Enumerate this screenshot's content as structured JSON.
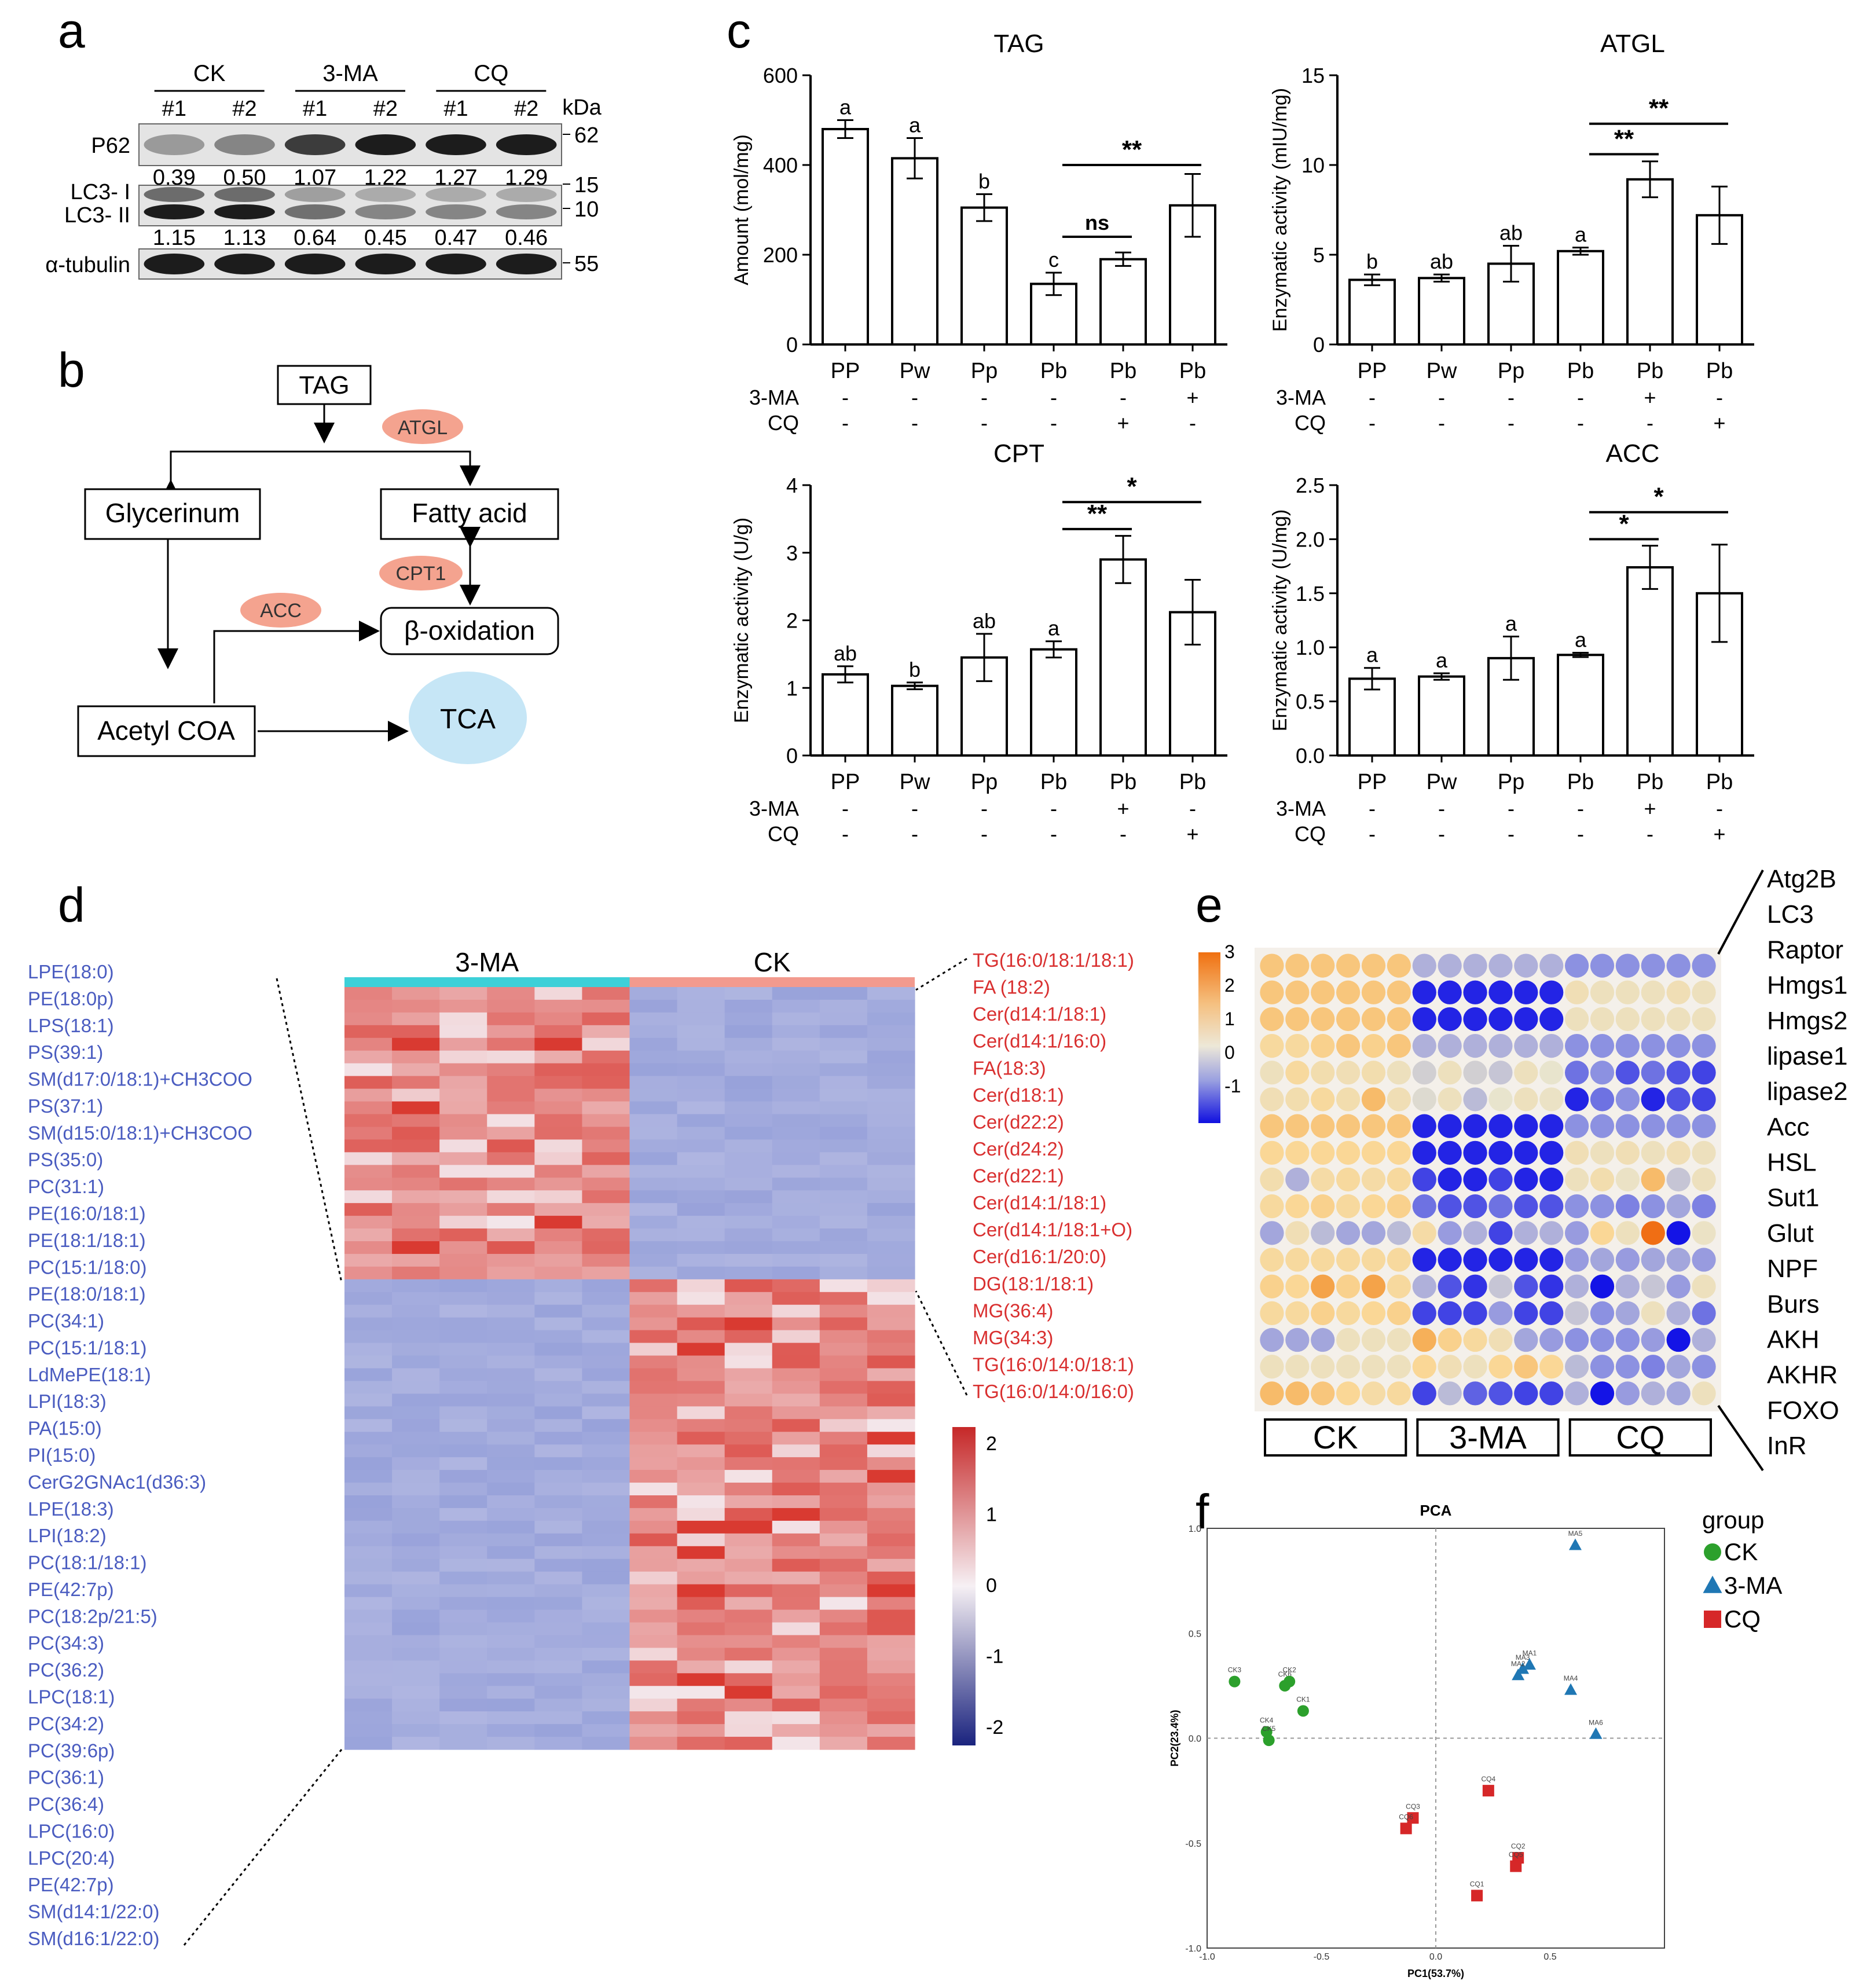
{
  "panel_labels": {
    "a": "a",
    "b": "b",
    "c": "c",
    "d": "d",
    "e": "e",
    "f": "f"
  },
  "blot": {
    "groups": [
      "CK",
      "3-MA",
      "CQ"
    ],
    "lanes": [
      "#1",
      "#2",
      "#1",
      "#2",
      "#1",
      "#2"
    ],
    "unit": "kDa",
    "rows": [
      {
        "label": "P62",
        "markers": [
          "62"
        ],
        "values": [
          "0.39",
          "0.50",
          "1.07",
          "1.22",
          "1.27",
          "1.29"
        ]
      },
      {
        "label": "LC3- I",
        "label2": "LC3- II",
        "markers": [
          "15",
          "10"
        ],
        "values": [
          "1.15",
          "1.13",
          "0.64",
          "0.45",
          "0.47",
          "0.46"
        ]
      },
      {
        "label": "α-tubulin",
        "markers": [
          "55"
        ],
        "values": []
      }
    ],
    "intensity_p62": [
      0.35,
      0.45,
      0.8,
      0.95,
      0.95,
      0.95
    ],
    "intensity_lc3": [
      0.95,
      0.95,
      0.55,
      0.45,
      0.45,
      0.45
    ]
  },
  "pathway": {
    "nodes": {
      "tag": "TAG",
      "glycerinum": "Glycerinum",
      "fatty_acid": "Fatty acid",
      "beta_ox": "β-oxidation",
      "acetyl": "Acetyl COA",
      "tca": "TCA"
    },
    "enzymes": {
      "atgl": "ATGL",
      "cpt1": "CPT1",
      "acc": "ACC"
    },
    "colors": {
      "enzyme": "#f4a38f",
      "tca": "#c6e6f6"
    }
  },
  "chart_data": [
    {
      "type": "bar",
      "title": "TAG",
      "ylabel": "Amount (mol/mg)",
      "ylim": [
        0,
        600
      ],
      "yticks": [
        0,
        200,
        400,
        600
      ],
      "categories": [
        "PP",
        "Pw",
        "Pp",
        "Pb",
        "Pb",
        "Pb"
      ],
      "values": [
        480,
        415,
        305,
        135,
        190,
        310
      ],
      "errors": [
        20,
        45,
        30,
        25,
        15,
        70
      ],
      "letters": [
        "a",
        "a",
        "b",
        "c",
        "",
        ""
      ],
      "treat_rows": [
        {
          "label": "3-MA",
          "signs": [
            "-",
            "-",
            "-",
            "-",
            "-",
            "+"
          ]
        },
        {
          "label": "CQ",
          "signs": [
            "-",
            "-",
            "-",
            "-",
            "+",
            "-"
          ]
        }
      ],
      "sig": [
        {
          "from": 3,
          "to": 4,
          "label": "ns",
          "y": 240
        },
        {
          "from": 3,
          "to": 5,
          "label": "**",
          "y": 400
        }
      ]
    },
    {
      "type": "bar",
      "title": "ATGL",
      "ylabel": "Enzymatic activity (mIU/mg)",
      "ylim": [
        0,
        15
      ],
      "yticks": [
        0,
        5,
        10,
        15
      ],
      "categories": [
        "PP",
        "Pw",
        "Pp",
        "Pb",
        "Pb",
        "Pb"
      ],
      "values": [
        3.6,
        3.7,
        4.5,
        5.2,
        9.2,
        7.2
      ],
      "errors": [
        0.3,
        0.2,
        1.0,
        0.2,
        1.0,
        1.6
      ],
      "letters": [
        "b",
        "ab",
        "ab",
        "a",
        "",
        ""
      ],
      "treat_rows": [
        {
          "label": "3-MA",
          "signs": [
            "-",
            "-",
            "-",
            "-",
            "+",
            "-"
          ]
        },
        {
          "label": "CQ",
          "signs": [
            "-",
            "-",
            "-",
            "-",
            "-",
            "+"
          ]
        }
      ],
      "sig": [
        {
          "from": 3,
          "to": 4,
          "label": "**",
          "y": 10.6
        },
        {
          "from": 3,
          "to": 5,
          "label": "**",
          "y": 12.3
        }
      ]
    },
    {
      "type": "bar",
      "title": "CPT",
      "ylabel": "Enzymatic activity (U/g)",
      "ylim": [
        0,
        4
      ],
      "yticks": [
        0,
        1,
        2,
        3,
        4
      ],
      "categories": [
        "PP",
        "Pw",
        "Pp",
        "Pb",
        "Pb",
        "Pb"
      ],
      "values": [
        1.2,
        1.03,
        1.45,
        1.57,
        2.9,
        2.12
      ],
      "errors": [
        0.12,
        0.05,
        0.35,
        0.12,
        0.35,
        0.48
      ],
      "letters": [
        "ab",
        "b",
        "ab",
        "a",
        "",
        ""
      ],
      "treat_rows": [
        {
          "label": "3-MA",
          "signs": [
            "-",
            "-",
            "-",
            "-",
            "+",
            "-"
          ]
        },
        {
          "label": "CQ",
          "signs": [
            "-",
            "-",
            "-",
            "-",
            "-",
            "+"
          ]
        }
      ],
      "sig": [
        {
          "from": 3,
          "to": 4,
          "label": "**",
          "y": 3.35
        },
        {
          "from": 3,
          "to": 5,
          "label": "*",
          "y": 3.75
        }
      ]
    },
    {
      "type": "bar",
      "title": "ACC",
      "ylabel": "Enzymatic activity (U/mg)",
      "ylim": [
        0,
        2.5
      ],
      "yticks": [
        "0.0",
        "0.5",
        "1.0",
        "1.5",
        "2.0",
        "2.5"
      ],
      "categories": [
        "PP",
        "Pw",
        "Pp",
        "Pb",
        "Pb",
        "Pb"
      ],
      "values": [
        0.71,
        0.73,
        0.9,
        0.93,
        1.74,
        1.5
      ],
      "errors": [
        0.1,
        0.03,
        0.2,
        0.02,
        0.2,
        0.45
      ],
      "letters": [
        "a",
        "a",
        "a",
        "a",
        "",
        ""
      ],
      "treat_rows": [
        {
          "label": "3-MA",
          "signs": [
            "-",
            "-",
            "-",
            "-",
            "+",
            "-"
          ]
        },
        {
          "label": "CQ",
          "signs": [
            "-",
            "-",
            "-",
            "-",
            "-",
            "+"
          ]
        }
      ],
      "sig": [
        {
          "from": 3,
          "to": 4,
          "label": "*",
          "y": 2.0
        },
        {
          "from": 3,
          "to": 5,
          "label": "*",
          "y": 2.25
        }
      ]
    },
    {
      "type": "heatmap",
      "groups": [
        {
          "name": "3-MA",
          "color": "#3dd0d8"
        },
        {
          "name": "CK",
          "color": "#f29a8e"
        }
      ],
      "cols_per_group": 6,
      "rows": 60,
      "split_row": 23,
      "scale": {
        "ticks": [
          "2",
          "1",
          "0",
          "-1",
          "-2"
        ],
        "range": [
          -2,
          2
        ]
      },
      "left_labels": [
        "LPE(18:0)",
        "PE(18:0p)",
        "LPS(18:1)",
        "PS(39:1)",
        "SM(d17:0/18:1)+CH3COO",
        "PS(37:1)",
        "SM(d15:0/18:1)+CH3COO",
        "PS(35:0)",
        "PC(31:1)",
        "PE(16:0/18:1)",
        "PE(18:1/18:1)",
        "PC(15:1/18:0)",
        "PE(18:0/18:1)",
        "PC(34:1)",
        "PC(15:1/18:1)",
        "LdMePE(18:1)",
        "LPI(18:3)",
        "PA(15:0)",
        "PI(15:0)",
        "CerG2GNAc1(d36:3)",
        "LPE(18:3)",
        "LPI(18:2)",
        "PC(18:1/18:1)",
        "PE(42:7p)",
        "PC(18:2p/21:5)",
        "PC(34:3)",
        "PC(36:2)",
        "LPC(18:1)",
        "PC(34:2)",
        "PC(39:6p)",
        "PC(36:1)",
        "PC(36:4)",
        "LPC(16:0)",
        "LPC(20:4)",
        "PE(42:7p)",
        "SM(d14:1/22:0)",
        "SM(d16:1/22:0)"
      ],
      "right_labels": [
        "TG(16:0/18:1/18:1)",
        "FA (18:2)",
        "Cer(d14:1/18:1)",
        "Cer(d14:1/16:0)",
        "FA(18:3)",
        "Cer(d18:1)",
        "Cer(d22:2)",
        "Cer(d24:2)",
        "Cer(d22:1)",
        "Cer(d14:1/18:1)",
        "Cer(d14:1/18:1+O)",
        "Cer(d16:1/20:0)",
        "DG(18:1/18:1)",
        "MG(36:4)",
        "MG(34:3)",
        "TG(16:0/14:0/18:1)",
        "TG(16:0/14:0/16:0)"
      ]
    },
    {
      "type": "heatmap",
      "style": "dot",
      "genes": [
        "Atg2B",
        "LC3",
        "Raptor",
        "Hmgs1",
        "Hmgs2",
        "lipase1",
        "lipase2",
        "Acc",
        "HSL",
        "Sut1",
        "Glut",
        "NPF",
        "Burs",
        "AKH",
        "AKHR",
        "FOXO",
        "InR"
      ],
      "groups": [
        "CK",
        "3-MA",
        "CQ"
      ],
      "scale": {
        "ticks": [
          "3",
          "2",
          "1",
          "0",
          "-1"
        ],
        "range": [
          -1.6,
          3
        ]
      },
      "matrix": [
        [
          1,
          1,
          1,
          1,
          1,
          1,
          -0.5,
          -0.5,
          -0.5,
          -0.5,
          -0.5,
          -0.5,
          -0.8,
          -0.8,
          -0.8,
          -0.8,
          -0.8,
          -0.8
        ],
        [
          1,
          1,
          1,
          1,
          1,
          1,
          -1.5,
          -1.5,
          -1.5,
          -1.5,
          -1.5,
          -1.5,
          0.3,
          0.2,
          0.2,
          0.2,
          0.3,
          0.2
        ],
        [
          1,
          1,
          1,
          1,
          1,
          1,
          -1.5,
          -1.5,
          -1.5,
          -1.5,
          -1.5,
          -1.5,
          0.2,
          0.2,
          0.2,
          0.2,
          0.2,
          0.2
        ],
        [
          0.6,
          0.6,
          0.8,
          1,
          0.8,
          1,
          -0.5,
          -0.5,
          -0.5,
          -0.5,
          -0.5,
          -0.5,
          -0.8,
          -0.8,
          -0.8,
          -0.8,
          -0.8,
          -0.8
        ],
        [
          0.2,
          0.6,
          0.4,
          0.3,
          0.4,
          0.2,
          -0.2,
          0.2,
          -0.2,
          -0.3,
          0.2,
          0.0,
          -1.0,
          -0.8,
          -1.2,
          -1.0,
          -1.2,
          -1.3
        ],
        [
          0.3,
          0.4,
          0.6,
          0.4,
          1.2,
          0.3,
          -0.1,
          0.2,
          -0.4,
          0.0,
          0.2,
          0.1,
          -1.5,
          -1.0,
          -0.8,
          -1.5,
          -1.2,
          -1.3
        ],
        [
          1,
          1,
          1,
          1,
          1,
          1,
          -1.5,
          -1.5,
          -1.5,
          -1.5,
          -1.5,
          -1.5,
          -0.8,
          -0.8,
          -0.8,
          -0.8,
          -0.8,
          -0.8
        ],
        [
          0.7,
          0.7,
          0.7,
          0.7,
          0.7,
          0.7,
          -1.5,
          -1.5,
          -1.5,
          -1.5,
          -1.5,
          -1.5,
          0.3,
          0.2,
          0.3,
          0.2,
          0.3,
          0.2
        ],
        [
          0.4,
          -0.5,
          0.5,
          0.6,
          0.5,
          0.6,
          -1.3,
          -1.5,
          -1.5,
          -1.3,
          -1.5,
          -1.5,
          0.2,
          0.4,
          0.1,
          1.2,
          -0.3,
          0.2
        ],
        [
          0.6,
          0.7,
          0.8,
          0.6,
          0.7,
          0.8,
          -1.0,
          -1.2,
          -1.2,
          -1.0,
          -1.2,
          -1.2,
          -0.8,
          -0.8,
          -0.9,
          -0.8,
          -0.6,
          -0.9
        ],
        [
          -0.6,
          0.3,
          -0.4,
          -0.6,
          -0.6,
          -0.4,
          0.5,
          -0.7,
          -0.5,
          -1.3,
          -0.5,
          -0.5,
          -0.7,
          0.7,
          0.2,
          2.4,
          -1.6,
          0.1
        ],
        [
          0.6,
          0.6,
          0.6,
          0.6,
          0.6,
          0.6,
          -1.5,
          -1.5,
          -1.5,
          -1.5,
          -1.5,
          -1.5,
          -0.7,
          -0.6,
          -0.7,
          -0.6,
          -0.6,
          -0.7
        ],
        [
          0.8,
          0.7,
          1.6,
          0.8,
          1.6,
          0.6,
          -0.5,
          -1.2,
          -1.4,
          -0.3,
          -1.2,
          -1.4,
          -0.5,
          -1.6,
          -0.5,
          -0.3,
          -0.7,
          0.2
        ],
        [
          0.6,
          0.6,
          0.8,
          0.6,
          0.7,
          0.8,
          -1.3,
          -1.3,
          -1.3,
          -0.7,
          -1.3,
          -1.3,
          -0.3,
          -0.8,
          -0.6,
          0.2,
          -0.5,
          -1.0
        ],
        [
          -0.6,
          -0.6,
          -0.6,
          0.2,
          0.2,
          0.2,
          1.4,
          0.8,
          0.6,
          0.3,
          -0.6,
          -0.7,
          -0.8,
          -0.8,
          -0.8,
          -0.7,
          -1.6,
          -0.5
        ],
        [
          0.2,
          0.2,
          0.2,
          0.2,
          0.2,
          0.2,
          0.7,
          0.3,
          0.2,
          0.7,
          1.0,
          0.7,
          -0.4,
          -0.8,
          -0.8,
          -0.9,
          -0.6,
          -0.8
        ],
        [
          1.2,
          1.2,
          1.0,
          0.7,
          0.5,
          0.6,
          -1.3,
          -0.4,
          -1.1,
          -1.2,
          -1.3,
          -1.3,
          -0.5,
          -1.6,
          -0.7,
          -0.5,
          -0.6,
          0.2
        ]
      ]
    },
    {
      "type": "scatter",
      "title": "PCA",
      "xlabel": "PC1(53.7%)",
      "ylabel": "PC2(23.4%)",
      "xlim": [
        -1.0,
        1.0
      ],
      "ylim": [
        -1.0,
        1.0
      ],
      "xticks": [
        "-1.0",
        "-0.5",
        "0.0",
        "0.5"
      ],
      "yticks": [
        "1.0",
        "0.5",
        "0.0",
        "-0.5",
        "-1.0"
      ],
      "legend_title": "group",
      "series": [
        {
          "name": "CK",
          "shape": "circle",
          "color": "#2ca02c",
          "points": [
            {
              "x": -0.88,
              "y": 0.27,
              "label": "CK3"
            },
            {
              "x": -0.66,
              "y": 0.25,
              "label": "CK6"
            },
            {
              "x": -0.64,
              "y": 0.27,
              "label": "CK2"
            },
            {
              "x": -0.58,
              "y": 0.13,
              "label": "CK1"
            },
            {
              "x": -0.74,
              "y": 0.03,
              "label": "CK4"
            },
            {
              "x": -0.73,
              "y": -0.01,
              "label": "CK5"
            }
          ]
        },
        {
          "name": "3-MA",
          "shape": "triangle",
          "color": "#1f77b4",
          "points": [
            {
              "x": 0.61,
              "y": 0.92,
              "label": "MA5"
            },
            {
              "x": 0.38,
              "y": 0.33,
              "label": "MA3"
            },
            {
              "x": 0.36,
              "y": 0.3,
              "label": "MA2"
            },
            {
              "x": 0.41,
              "y": 0.35,
              "label": "MA1"
            },
            {
              "x": 0.59,
              "y": 0.23,
              "label": "MA4"
            },
            {
              "x": 0.7,
              "y": 0.02,
              "label": "MA6"
            }
          ]
        },
        {
          "name": "CQ",
          "shape": "square",
          "color": "#d62728",
          "points": [
            {
              "x": 0.23,
              "y": -0.25,
              "label": "CQ4"
            },
            {
              "x": -0.1,
              "y": -0.38,
              "label": "CQ3"
            },
            {
              "x": -0.13,
              "y": -0.43,
              "label": "CQ6"
            },
            {
              "x": 0.36,
              "y": -0.57,
              "label": "CQ2"
            },
            {
              "x": 0.35,
              "y": -0.61,
              "label": "CQ5"
            },
            {
              "x": 0.18,
              "y": -0.75,
              "label": "CQ1"
            }
          ]
        }
      ]
    }
  ]
}
